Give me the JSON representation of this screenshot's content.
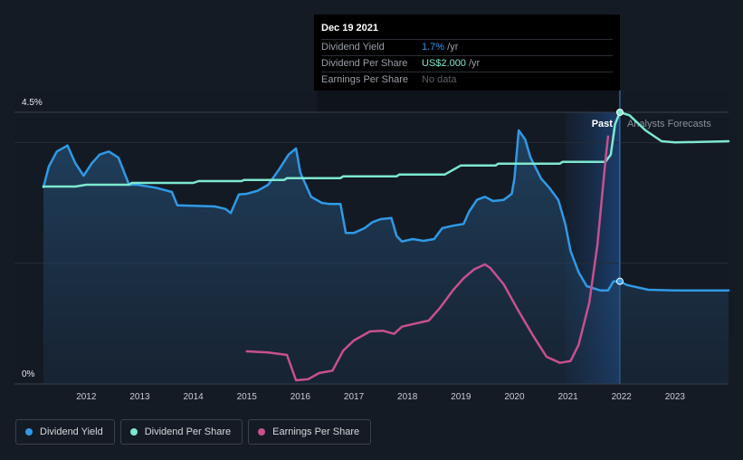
{
  "tooltip": {
    "date": "Dec 19 2021",
    "rows": [
      {
        "label": "Dividend Yield",
        "value": "1.7%",
        "unit": " /yr",
        "color": "#2f9ae6"
      },
      {
        "label": "Dividend Per Share",
        "value": "US$2.000",
        "unit": " /yr",
        "color": "#7de8cf"
      },
      {
        "label": "Earnings Per Share",
        "value": "No data",
        "unit": "",
        "color": "#5a6068"
      }
    ]
  },
  "regions": {
    "past_label": "Past",
    "forecast_label": "Analysts Forecasts"
  },
  "legend": [
    {
      "label": "Dividend Yield",
      "color": "#2f9ae6"
    },
    {
      "label": "Dividend Per Share",
      "color": "#7de8cf"
    },
    {
      "label": "Earnings Per Share",
      "color": "#c8508f"
    }
  ],
  "chart_data": {
    "type": "line",
    "xlim": [
      2011.2,
      2024.0
    ],
    "ylim": [
      0,
      4.5
    ],
    "y_tick_labels": [
      {
        "value": 4.5,
        "label": "4.5%"
      },
      {
        "value": 0,
        "label": "0%"
      }
    ],
    "x_ticks": [
      2012,
      2013,
      2014,
      2015,
      2016,
      2017,
      2018,
      2019,
      2020,
      2021,
      2022,
      2023
    ],
    "grid": true,
    "highlight_date": 2021.97,
    "series": [
      {
        "name": "Dividend Yield",
        "color": "#2f9ae6",
        "points": [
          [
            2011.2,
            3.26
          ],
          [
            2011.3,
            3.6
          ],
          [
            2011.45,
            3.85
          ],
          [
            2011.65,
            3.95
          ],
          [
            2011.8,
            3.65
          ],
          [
            2011.95,
            3.45
          ],
          [
            2012.1,
            3.65
          ],
          [
            2012.25,
            3.8
          ],
          [
            2012.42,
            3.85
          ],
          [
            2012.6,
            3.75
          ],
          [
            2012.8,
            3.3
          ],
          [
            2012.95,
            3.3
          ],
          [
            2013.3,
            3.25
          ],
          [
            2013.6,
            3.18
          ],
          [
            2013.7,
            2.96
          ],
          [
            2014.0,
            2.95
          ],
          [
            2014.4,
            2.94
          ],
          [
            2014.6,
            2.9
          ],
          [
            2014.7,
            2.83
          ],
          [
            2014.85,
            3.14
          ],
          [
            2015.0,
            3.15
          ],
          [
            2015.2,
            3.2
          ],
          [
            2015.4,
            3.3
          ],
          [
            2015.6,
            3.55
          ],
          [
            2015.78,
            3.8
          ],
          [
            2015.92,
            3.9
          ],
          [
            2016.0,
            3.5
          ],
          [
            2016.2,
            3.1
          ],
          [
            2016.4,
            3.0
          ],
          [
            2016.55,
            2.98
          ],
          [
            2016.75,
            2.98
          ],
          [
            2016.85,
            2.5
          ],
          [
            2017.0,
            2.5
          ],
          [
            2017.2,
            2.58
          ],
          [
            2017.35,
            2.68
          ],
          [
            2017.5,
            2.73
          ],
          [
            2017.7,
            2.75
          ],
          [
            2017.8,
            2.45
          ],
          [
            2017.9,
            2.36
          ],
          [
            2018.1,
            2.4
          ],
          [
            2018.3,
            2.37
          ],
          [
            2018.5,
            2.4
          ],
          [
            2018.65,
            2.58
          ],
          [
            2018.85,
            2.62
          ],
          [
            2019.05,
            2.65
          ],
          [
            2019.15,
            2.85
          ],
          [
            2019.3,
            3.05
          ],
          [
            2019.45,
            3.1
          ],
          [
            2019.6,
            3.03
          ],
          [
            2019.8,
            3.05
          ],
          [
            2019.95,
            3.15
          ],
          [
            2020.0,
            3.4
          ],
          [
            2020.08,
            4.2
          ],
          [
            2020.2,
            4.05
          ],
          [
            2020.3,
            3.75
          ],
          [
            2020.5,
            3.4
          ],
          [
            2020.65,
            3.25
          ],
          [
            2020.82,
            3.05
          ],
          [
            2020.95,
            2.65
          ],
          [
            2021.05,
            2.2
          ],
          [
            2021.2,
            1.85
          ],
          [
            2021.35,
            1.62
          ],
          [
            2021.6,
            1.55
          ],
          [
            2021.75,
            1.55
          ],
          [
            2021.85,
            1.7
          ],
          [
            2021.97,
            1.7
          ],
          [
            2022.1,
            1.64
          ],
          [
            2022.5,
            1.56
          ],
          [
            2023.0,
            1.55
          ],
          [
            2024.0,
            1.55
          ]
        ]
      },
      {
        "name": "Dividend Per Share",
        "color": "#7de8cf",
        "points": [
          [
            2011.2,
            3.27
          ],
          [
            2011.8,
            3.27
          ],
          [
            2012.0,
            3.3
          ],
          [
            2012.8,
            3.3
          ],
          [
            2012.85,
            3.33
          ],
          [
            2014.0,
            3.33
          ],
          [
            2014.1,
            3.36
          ],
          [
            2014.9,
            3.36
          ],
          [
            2014.95,
            3.38
          ],
          [
            2015.7,
            3.38
          ],
          [
            2015.75,
            3.41
          ],
          [
            2016.75,
            3.41
          ],
          [
            2016.8,
            3.44
          ],
          [
            2017.8,
            3.44
          ],
          [
            2017.85,
            3.47
          ],
          [
            2018.7,
            3.47
          ],
          [
            2018.8,
            3.52
          ],
          [
            2019.0,
            3.62
          ],
          [
            2019.65,
            3.62
          ],
          [
            2019.7,
            3.65
          ],
          [
            2020.85,
            3.65
          ],
          [
            2020.9,
            3.68
          ],
          [
            2021.7,
            3.68
          ],
          [
            2021.8,
            3.8
          ],
          [
            2021.88,
            4.3
          ],
          [
            2021.97,
            4.5
          ],
          [
            2022.15,
            4.45
          ],
          [
            2022.45,
            4.2
          ],
          [
            2022.75,
            4.02
          ],
          [
            2023.0,
            4.0
          ],
          [
            2024.0,
            4.02
          ]
        ]
      },
      {
        "name": "Earnings Per Share",
        "color": "#c8508f",
        "points": [
          [
            2015.0,
            0.54
          ],
          [
            2015.4,
            0.52
          ],
          [
            2015.75,
            0.48
          ],
          [
            2015.92,
            0.06
          ],
          [
            2016.15,
            0.08
          ],
          [
            2016.35,
            0.18
          ],
          [
            2016.6,
            0.22
          ],
          [
            2016.8,
            0.55
          ],
          [
            2017.0,
            0.72
          ],
          [
            2017.3,
            0.87
          ],
          [
            2017.55,
            0.88
          ],
          [
            2017.75,
            0.83
          ],
          [
            2017.9,
            0.95
          ],
          [
            2018.15,
            1.0
          ],
          [
            2018.4,
            1.05
          ],
          [
            2018.6,
            1.25
          ],
          [
            2018.85,
            1.55
          ],
          [
            2019.05,
            1.75
          ],
          [
            2019.25,
            1.9
          ],
          [
            2019.45,
            1.98
          ],
          [
            2019.55,
            1.92
          ],
          [
            2019.8,
            1.65
          ],
          [
            2020.05,
            1.25
          ],
          [
            2020.35,
            0.8
          ],
          [
            2020.6,
            0.45
          ],
          [
            2020.85,
            0.35
          ],
          [
            2021.05,
            0.38
          ],
          [
            2021.2,
            0.65
          ],
          [
            2021.4,
            1.35
          ],
          [
            2021.55,
            2.3
          ],
          [
            2021.7,
            3.7
          ],
          [
            2021.75,
            4.1
          ]
        ]
      }
    ]
  }
}
